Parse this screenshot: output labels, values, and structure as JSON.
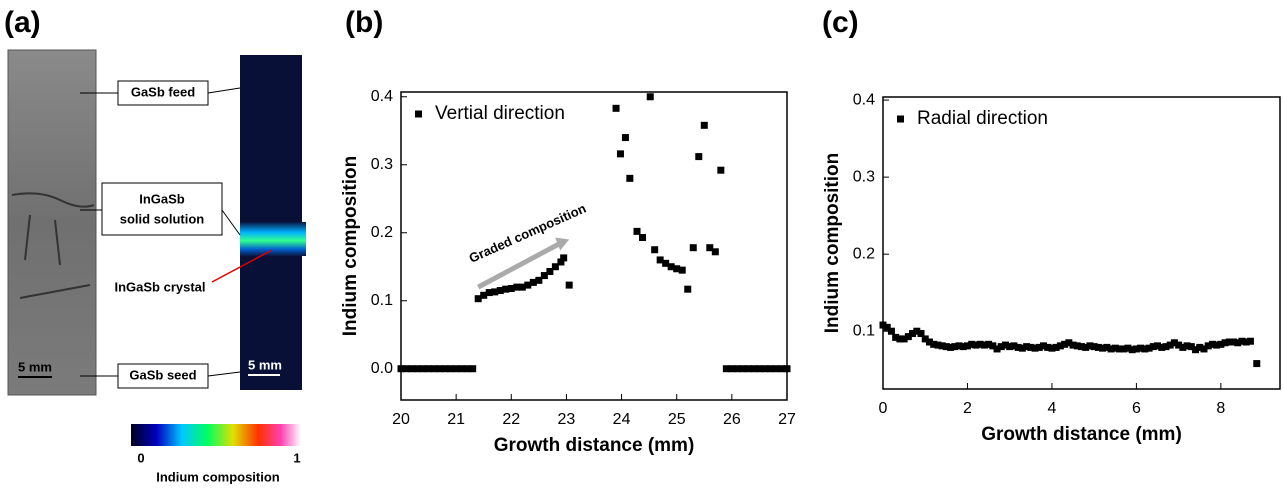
{
  "panel_labels": [
    "(a)",
    "(b)",
    "(c)"
  ],
  "panel_a": {
    "feed": "GaSb feed",
    "solution_1": "InGaSb",
    "solution_2": "solid solution",
    "crystal": "InGaSb crystal",
    "seed": "GaSb seed",
    "scale_left": "5 mm",
    "scale_right": "5 mm",
    "colorbar_ticks": [
      0,
      1
    ],
    "colorbar_title": "Indium composition"
  },
  "chart_data": [
    {
      "type": "scatter",
      "xlabel": "Growth distance (mm)",
      "ylabel": "Indium composition",
      "annotation": "Graded composition",
      "legend": "upper left",
      "xlim": [
        20,
        27
      ],
      "ylim": [
        -0.046,
        0.407
      ],
      "xticks": [
        20,
        21,
        22,
        23,
        24,
        25,
        26,
        27
      ],
      "yticks": [
        {
          "value": 0,
          "label": "0.0"
        },
        0.1,
        0.2,
        0.3,
        0.4
      ],
      "series": [
        {
          "name": "Vertial direction",
          "color": "#000000",
          "x": [
            20.0,
            20.1,
            20.2,
            20.3,
            20.4,
            20.5,
            20.6,
            20.7,
            20.8,
            20.9,
            21.0,
            21.1,
            21.2,
            21.3,
            21.4,
            21.5,
            21.6,
            21.7,
            21.8,
            21.9,
            22.0,
            22.1,
            22.2,
            22.3,
            22.4,
            22.5,
            22.6,
            22.7,
            22.8,
            22.9,
            22.95,
            23.05,
            23.9,
            23.98,
            24.07,
            24.15,
            24.28,
            24.38,
            24.52,
            24.6,
            24.7,
            24.8,
            24.9,
            25.0,
            25.1,
            25.2,
            25.3,
            25.4,
            25.5,
            25.6,
            25.7,
            25.8,
            25.9,
            26.0,
            26.1,
            26.2,
            26.3,
            26.4,
            26.5,
            26.6,
            26.7,
            26.8,
            26.9,
            27.0
          ],
          "values": [
            0,
            0,
            0,
            0,
            0,
            0,
            0,
            0,
            0,
            0,
            0,
            0,
            0,
            0,
            0.103,
            0.108,
            0.112,
            0.113,
            0.115,
            0.117,
            0.118,
            0.12,
            0.12,
            0.123,
            0.127,
            0.13,
            0.137,
            0.143,
            0.15,
            0.157,
            0.163,
            0.123,
            0.383,
            0.316,
            0.34,
            0.28,
            0.202,
            0.193,
            0.4,
            0.175,
            0.16,
            0.155,
            0.15,
            0.147,
            0.145,
            0.117,
            0.178,
            0.312,
            0.358,
            0.178,
            0.172,
            0.292,
            0,
            0,
            0,
            0,
            0,
            0,
            0,
            0,
            0,
            0,
            0,
            0
          ]
        }
      ]
    },
    {
      "type": "scatter",
      "xlabel": "Growth distance (mm)",
      "ylabel": "Indium composition",
      "legend": "upper left",
      "xlim": [
        0,
        9.4
      ],
      "ylim": [
        0.025,
        0.404
      ],
      "xticks": [
        0,
        2,
        4,
        6,
        8
      ],
      "yticks": [
        0.1,
        0.2,
        0.3,
        0.4
      ],
      "series": [
        {
          "name": "Radial direction",
          "color": "#000000",
          "x": [
            0.0,
            0.1,
            0.2,
            0.3,
            0.4,
            0.5,
            0.6,
            0.7,
            0.8,
            0.9,
            1.0,
            1.1,
            1.2,
            1.3,
            1.4,
            1.5,
            1.6,
            1.7,
            1.8,
            1.9,
            2.0,
            2.1,
            2.2,
            2.3,
            2.4,
            2.5,
            2.6,
            2.7,
            2.8,
            2.9,
            3.0,
            3.1,
            3.2,
            3.3,
            3.4,
            3.5,
            3.6,
            3.7,
            3.8,
            3.9,
            4.0,
            4.1,
            4.2,
            4.3,
            4.4,
            4.5,
            4.6,
            4.7,
            4.8,
            4.9,
            5.0,
            5.1,
            5.2,
            5.3,
            5.4,
            5.5,
            5.6,
            5.7,
            5.8,
            5.9,
            6.0,
            6.1,
            6.2,
            6.3,
            6.4,
            6.5,
            6.6,
            6.7,
            6.8,
            6.9,
            7.0,
            7.1,
            7.2,
            7.3,
            7.4,
            7.5,
            7.6,
            7.7,
            7.8,
            7.9,
            8.0,
            8.1,
            8.2,
            8.3,
            8.4,
            8.5,
            8.6,
            8.7,
            8.85
          ],
          "values": [
            0.108,
            0.105,
            0.1,
            0.092,
            0.09,
            0.09,
            0.093,
            0.097,
            0.1,
            0.097,
            0.09,
            0.086,
            0.083,
            0.082,
            0.081,
            0.08,
            0.079,
            0.08,
            0.081,
            0.08,
            0.081,
            0.083,
            0.082,
            0.083,
            0.082,
            0.083,
            0.081,
            0.077,
            0.08,
            0.082,
            0.08,
            0.081,
            0.079,
            0.078,
            0.08,
            0.079,
            0.078,
            0.079,
            0.081,
            0.079,
            0.078,
            0.079,
            0.081,
            0.083,
            0.085,
            0.082,
            0.081,
            0.08,
            0.079,
            0.081,
            0.08,
            0.079,
            0.078,
            0.079,
            0.077,
            0.078,
            0.077,
            0.077,
            0.078,
            0.076,
            0.077,
            0.078,
            0.077,
            0.078,
            0.08,
            0.081,
            0.079,
            0.08,
            0.082,
            0.085,
            0.082,
            0.079,
            0.081,
            0.08,
            0.076,
            0.079,
            0.077,
            0.081,
            0.083,
            0.082,
            0.083,
            0.085,
            0.086,
            0.086,
            0.085,
            0.087,
            0.086,
            0.087,
            0.058
          ]
        }
      ]
    }
  ]
}
